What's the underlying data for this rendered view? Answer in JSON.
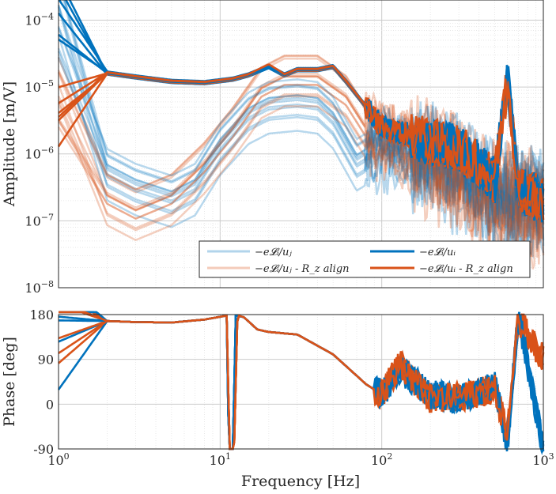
{
  "chart_data": [
    {
      "type": "line",
      "panel": "amplitude",
      "xscale": "log",
      "yscale": "log",
      "xlim": [
        1,
        1000
      ],
      "ylim": [
        1e-08,
        0.0002
      ],
      "grid": true,
      "ylabel": "Amplitude [m/V]",
      "xticks": [
        1,
        10,
        100,
        1000
      ],
      "yticks": [
        1e-08,
        1e-07,
        1e-06,
        1e-05,
        0.0001
      ],
      "ytick_labels": [
        {
          "base": "10",
          "exp": "−8"
        },
        {
          "base": "10",
          "exp": "−7"
        },
        {
          "base": "10",
          "exp": "−6"
        },
        {
          "base": "10",
          "exp": "−5"
        },
        {
          "base": "10",
          "exp": "−4"
        }
      ],
      "legend": {
        "placement": "lower-right",
        "columns": 2,
        "entries": [
          {
            "label": "−e𝓛ᵢ/uⱼ",
            "color": "#0072BD",
            "style": "light"
          },
          {
            "label": "−e𝓛ᵢ/uᵢ",
            "color": "#0072BD",
            "style": "bold"
          },
          {
            "label": "−e𝓛ᵢ/uⱼ - R_z align",
            "color": "#D95319",
            "style": "light"
          },
          {
            "label": "−e𝓛ᵢ/uᵢ - R_z align",
            "color": "#D95319",
            "style": "bold"
          }
        ]
      },
      "series": [
        {
          "group": "direct",
          "color": "#0072BD",
          "points": [
            [
              1,
              0.00018
            ],
            [
              2,
              1.6e-05
            ],
            [
              3,
              1.4e-05
            ],
            [
              5,
              1.2e-05
            ],
            [
              8,
              1.15e-05
            ],
            [
              12,
              1.3e-05
            ],
            [
              15,
              1.5e-05
            ],
            [
              20,
              2e-05
            ],
            [
              25,
              1.5e-05
            ],
            [
              30,
              1.8e-05
            ],
            [
              40,
              1.8e-05
            ],
            [
              50,
              2e-05
            ],
            [
              60,
              1.2e-05
            ],
            [
              80,
              5e-06
            ],
            [
              100,
              2.5e-06
            ],
            [
              200,
              1.5e-06
            ],
            [
              300,
              1.2e-06
            ],
            [
              400,
              7e-07
            ],
            [
              500,
              4e-07
            ],
            [
              600,
              1.2e-05
            ],
            [
              700,
              3e-07
            ],
            [
              1000,
              2e-07
            ]
          ]
        },
        {
          "group": "direct-Rz",
          "color": "#D95319",
          "points": [
            [
              1,
              2.5e-06
            ],
            [
              2,
              1.6e-05
            ],
            [
              3,
              1.4e-05
            ],
            [
              5,
              1.2e-05
            ],
            [
              8,
              1.15e-05
            ],
            [
              12,
              1.3e-05
            ],
            [
              15,
              1.5e-05
            ],
            [
              20,
              2.1e-05
            ],
            [
              25,
              1.5e-05
            ],
            [
              30,
              1.8e-05
            ],
            [
              40,
              1.8e-05
            ],
            [
              50,
              2e-05
            ],
            [
              60,
              1.2e-05
            ],
            [
              80,
              5e-06
            ],
            [
              100,
              2.5e-06
            ],
            [
              200,
              1.5e-06
            ],
            [
              300,
              1.2e-06
            ],
            [
              400,
              7e-07
            ],
            [
              500,
              4e-07
            ],
            [
              600,
              1.2e-05
            ],
            [
              700,
              3e-07
            ],
            [
              1000,
              2e-07
            ]
          ]
        },
        {
          "group": "coupling",
          "color": "#0072BD",
          "points": [
            [
              1,
              0.0001
            ],
            [
              2,
              5e-07
            ],
            [
              3,
              3e-07
            ],
            [
              5,
              2e-07
            ],
            [
              7,
              3e-07
            ],
            [
              10,
              1.2e-06
            ],
            [
              15,
              3.5e-06
            ],
            [
              20,
              5e-06
            ],
            [
              30,
              5.5e-06
            ],
            [
              40,
              5e-06
            ],
            [
              50,
              3e-06
            ],
            [
              70,
              7e-07
            ],
            [
              100,
              1.2e-06
            ],
            [
              200,
              8e-07
            ],
            [
              300,
              5e-07
            ],
            [
              500,
              2e-07
            ],
            [
              1000,
              1.5e-07
            ]
          ]
        },
        {
          "group": "coupling-Rz",
          "color": "#D95319",
          "points": [
            [
              1,
              5e-06
            ],
            [
              2,
              2e-07
            ],
            [
              3,
              1.2e-07
            ],
            [
              5,
              2e-07
            ],
            [
              8,
              6e-07
            ],
            [
              12,
              2e-06
            ],
            [
              18,
              8e-06
            ],
            [
              25,
              1.2e-05
            ],
            [
              40,
              1.2e-05
            ],
            [
              60,
              6e-06
            ],
            [
              80,
              2e-06
            ],
            [
              100,
              1.5e-06
            ],
            [
              200,
              8e-07
            ],
            [
              500,
              2e-07
            ],
            [
              1000,
              1.5e-07
            ]
          ]
        }
      ]
    },
    {
      "type": "line",
      "panel": "phase",
      "xscale": "log",
      "xlim": [
        1,
        1000
      ],
      "ylim": [
        -90,
        180
      ],
      "grid": true,
      "xlabel": "Frequency [Hz]",
      "ylabel": "Phase [deg]",
      "xticks": [
        1,
        10,
        100,
        1000
      ],
      "xtick_labels": [
        {
          "base": "10",
          "exp": "0"
        },
        {
          "base": "10",
          "exp": "1"
        },
        {
          "base": "10",
          "exp": "2"
        },
        {
          "base": "10",
          "exp": "3"
        }
      ],
      "yticks": [
        -90,
        0,
        90,
        180
      ],
      "ytick_labels": [
        "-90",
        "0",
        "90",
        "180"
      ],
      "series": [
        {
          "group": "direct",
          "color": "#0072BD",
          "points": [
            [
              1,
              140
            ],
            [
              2,
              167
            ],
            [
              3,
              165
            ],
            [
              5,
              164
            ],
            [
              8,
              170
            ],
            [
              11,
              178
            ],
            [
              11.3,
              -90
            ],
            [
              12,
              -90
            ],
            [
              12.5,
              178
            ],
            [
              14,
              175
            ],
            [
              17,
              150
            ],
            [
              20,
              145
            ],
            [
              30,
              140
            ],
            [
              50,
              100
            ],
            [
              80,
              40
            ],
            [
              100,
              20
            ],
            [
              130,
              70
            ],
            [
              200,
              20
            ],
            [
              300,
              10
            ],
            [
              500,
              40
            ],
            [
              600,
              -80
            ],
            [
              700,
              180
            ],
            [
              1000,
              -90
            ]
          ]
        },
        {
          "group": "direct-Rz",
          "color": "#D95319",
          "points": [
            [
              1,
              175
            ],
            [
              2,
              167
            ],
            [
              3,
              165
            ],
            [
              5,
              164
            ],
            [
              8,
              170
            ],
            [
              11,
              178
            ],
            [
              11.4,
              -90
            ],
            [
              12.2,
              -90
            ],
            [
              12.8,
              178
            ],
            [
              14,
              175
            ],
            [
              17,
              150
            ],
            [
              20,
              145
            ],
            [
              30,
              140
            ],
            [
              50,
              100
            ],
            [
              80,
              40
            ],
            [
              100,
              20
            ],
            [
              130,
              80
            ],
            [
              200,
              10
            ],
            [
              300,
              15
            ],
            [
              500,
              30
            ],
            [
              600,
              -60
            ],
            [
              700,
              170
            ],
            [
              1000,
              90
            ]
          ]
        }
      ]
    }
  ]
}
